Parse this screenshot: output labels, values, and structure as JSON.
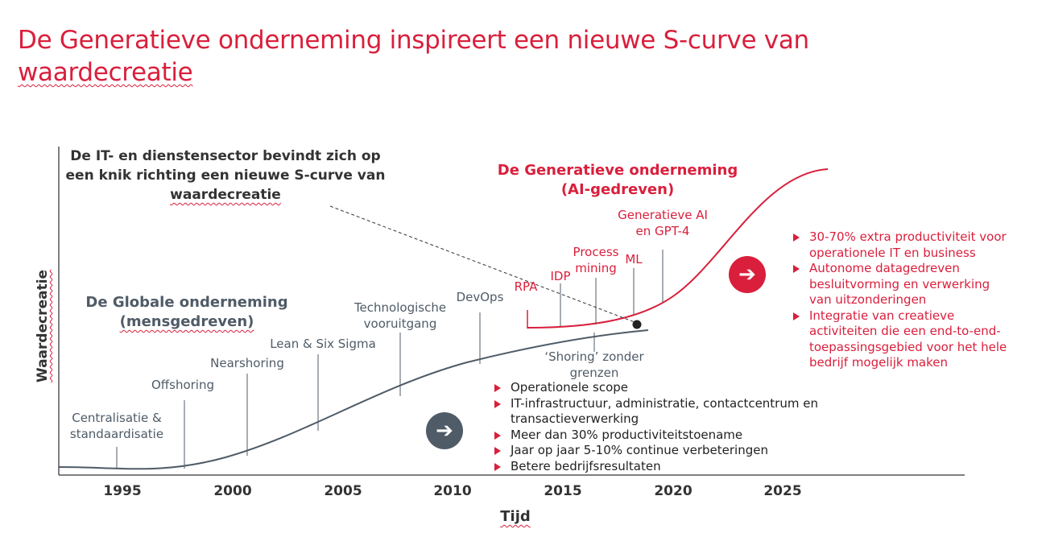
{
  "title": {
    "line1": "De Generatieve onderneming inspireert een nieuwe S-curve van",
    "line2": "waardecreatie"
  },
  "colors": {
    "accent": "#d91f3c",
    "grey": "#4f5b67",
    "dark": "#333333"
  },
  "axes": {
    "y_label": "Waardecreatie",
    "x_label": "Tijd"
  },
  "chart_data": {
    "type": "line",
    "xlabel": "Tijd",
    "ylabel": "Waardecreatie",
    "x_ticks": [
      "1995",
      "2000",
      "2005",
      "2010",
      "2015",
      "2020",
      "2025"
    ],
    "series": [
      {
        "name": "De Globale onderneming (mensgedreven)",
        "color": "#4f5b67"
      },
      {
        "name": "De Generatieve onderneming (AI-gedreven)",
        "color": "#d91f3c"
      }
    ]
  },
  "annotation": {
    "line1": "De IT- en dienstensector bevindt zich op",
    "line2": "een knik richting een nieuwe S-curve van",
    "line3": "waardecreatie"
  },
  "global": {
    "heading_line1": "De Globale onderneming",
    "heading_line2": "(mensgedreven)",
    "milestones": {
      "centralisatie_1": "Centralisatie &",
      "centralisatie_2": "standaardisatie",
      "offshoring": "Offshoring",
      "nearshoring": "Nearshoring",
      "lean": "Lean & Six Sigma",
      "tech_1": "Technologische",
      "tech_2": "vooruitgang",
      "devops": "DevOps",
      "shoring_1": "‘Shoring’ zonder",
      "shoring_2": "grenzen"
    },
    "arrow_icon": "arrow-right-icon",
    "bullets": [
      "Operationele scope",
      "IT-infrastructuur, administratie, contactcentrum en",
      "transactieverwerking",
      "Meer dan 30% productiviteitstoename",
      "Jaar op jaar 5-10% continue verbeteringen",
      "Betere bedrijfsresultaten"
    ]
  },
  "generative": {
    "heading_line1": "De Generatieve onderneming",
    "heading_line2": "(AI-gedreven)",
    "milestones": {
      "rpa": "RPA",
      "idp": "IDP",
      "process_1": "Process",
      "process_2": "mining",
      "ml": "ML",
      "genai_1": "Generatieve AI",
      "genai_2": "en GPT-4"
    },
    "arrow_icon": "arrow-right-icon",
    "bullets": [
      "30-70% extra productiviteit voor",
      "operationele IT en business",
      "Autonome datagedreven",
      "besluitvorming en verwerking",
      "van uitzonderingen",
      "Integratie van creatieve",
      "activiteiten die een end-to-end-",
      "toepassingsgebied voor het hele",
      "bedrijf mogelijk maken"
    ]
  }
}
